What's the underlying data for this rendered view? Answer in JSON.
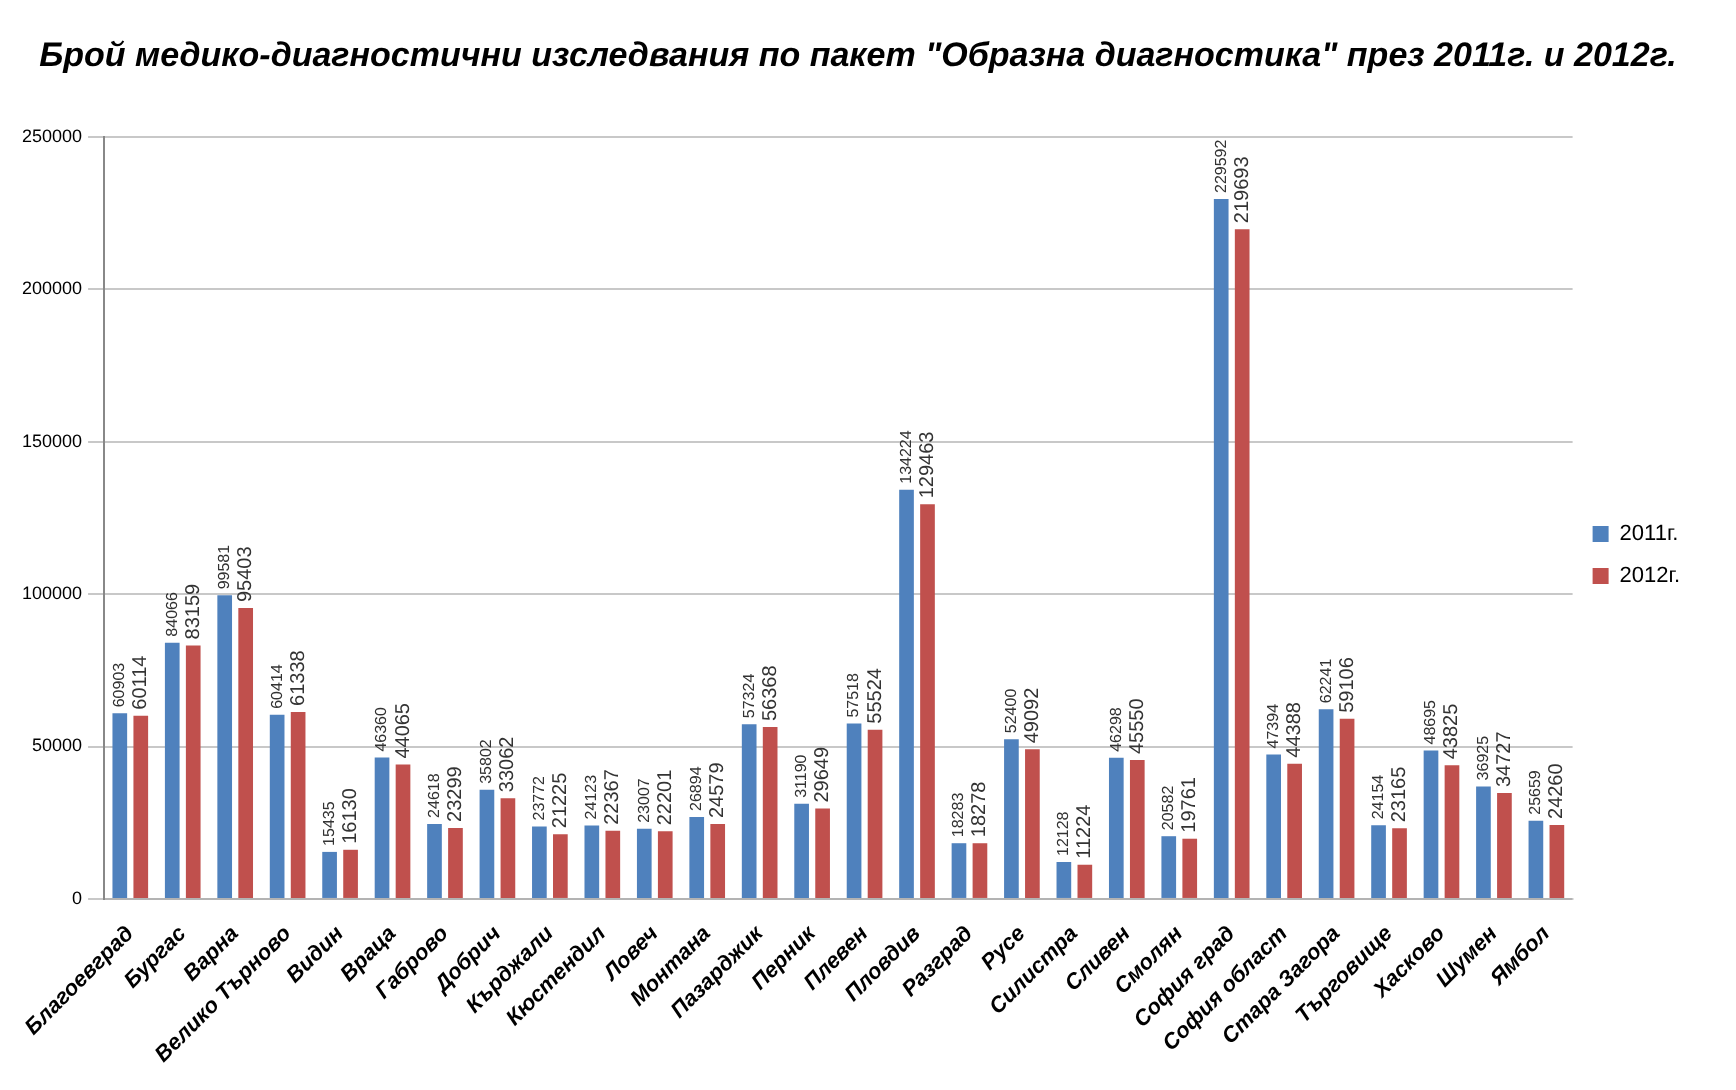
{
  "chart_data": {
    "type": "bar",
    "title": "Брой медико-диагностични изследвания по пакет \"Образна диагностика\" през 2011г. и 2012г.",
    "categories": [
      "Благоевград",
      "Бургас",
      "Варна",
      "Велико Търново",
      "Видин",
      "Враца",
      "Габрово",
      "Добрич",
      "Кърджали",
      "Кюстендил",
      "Ловеч",
      "Монтана",
      "Пазарджик",
      "Перник",
      "Плевен",
      "Пловдив",
      "Разград",
      "Русе",
      "Силистра",
      "Сливен",
      "Смолян",
      "София град",
      "София област",
      "Стара Загора",
      "Търговище",
      "Хасково",
      "Шумен",
      "Ямбол"
    ],
    "series": [
      {
        "name": "2011г.",
        "color": "#4f81bd",
        "values": [
          60903,
          84066,
          99581,
          60414,
          15435,
          46360,
          24618,
          35802,
          23772,
          24123,
          23007,
          26894,
          57324,
          31190,
          57518,
          134224,
          18283,
          52400,
          12128,
          46298,
          20582,
          229592,
          47394,
          62241,
          24154,
          48695,
          36925,
          25659
        ]
      },
      {
        "name": "2012г.",
        "color": "#c0504d",
        "values": [
          60114,
          83159,
          95403,
          61338,
          16130,
          44065,
          23299,
          33062,
          21225,
          22367,
          22201,
          24579,
          56368,
          29649,
          55524,
          129463,
          18278,
          49092,
          11224,
          45550,
          19761,
          219693,
          44388,
          59106,
          23165,
          43825,
          34727,
          24260
        ]
      }
    ],
    "ylim": [
      0,
      250000
    ],
    "yticks": [
      0,
      50000,
      100000,
      150000,
      200000,
      250000
    ],
    "grid": "y",
    "legend": "right",
    "data_labels": true
  }
}
